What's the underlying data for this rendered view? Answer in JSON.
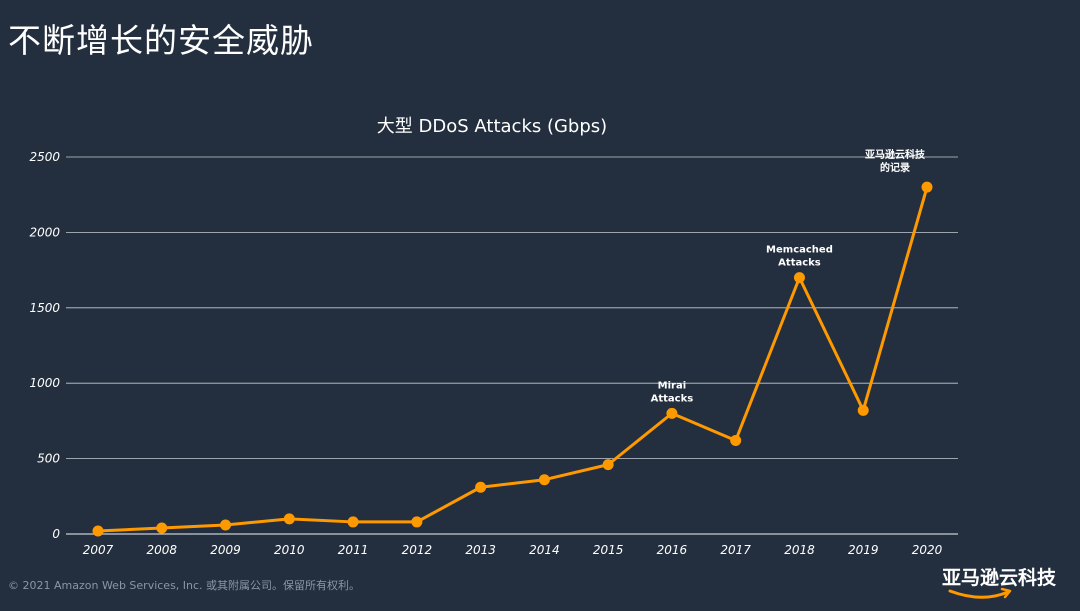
{
  "slide": {
    "title": "不断增长的安全威胁",
    "footer": "© 2021 Amazon Web Services, Inc. 或其附属公司。保留所有权利。",
    "logo_text": "亚马逊云科技"
  },
  "colors": {
    "background": "#232f3e",
    "line": "#ff9900",
    "grid": "#c8ccd2",
    "text": "#ffffff",
    "footer": "#8a96a8"
  },
  "chart_data": {
    "type": "line",
    "title": "大型 DDoS Attacks (Gbps)",
    "xlabel": "",
    "ylabel": "",
    "ylim": [
      0,
      2500
    ],
    "yticks": [
      0,
      500,
      1000,
      1500,
      2000,
      2500
    ],
    "grid": true,
    "categories": [
      "2007",
      "2008",
      "2009",
      "2010",
      "2011",
      "2012",
      "2013",
      "2014",
      "2015",
      "2016",
      "2017",
      "2018",
      "2019",
      "2020"
    ],
    "series": [
      {
        "values": [
          20,
          40,
          60,
          100,
          80,
          80,
          310,
          360,
          460,
          800,
          620,
          1700,
          820,
          2300
        ]
      }
    ],
    "annotations": [
      {
        "category": "2016",
        "lines": [
          "Mirai",
          "Attacks"
        ]
      },
      {
        "category": "2018",
        "lines": [
          "Memcached",
          "Attacks"
        ]
      },
      {
        "category": "2020",
        "lines": [
          "亚马逊云科技",
          "的记录"
        ]
      }
    ]
  }
}
